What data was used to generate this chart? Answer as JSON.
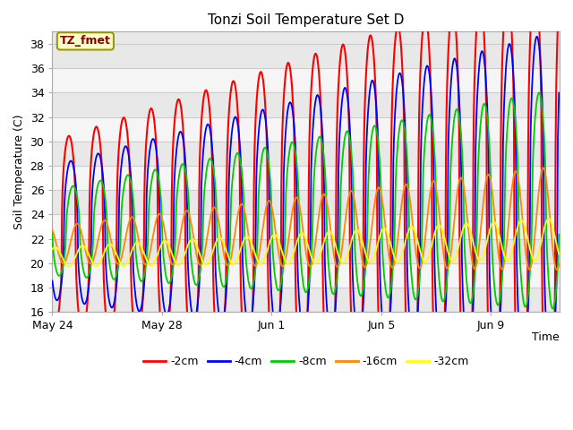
{
  "title": "Tonzi Soil Temperature Set D",
  "ylabel": "Soil Temperature (C)",
  "xlabel": "Time",
  "annotation": "TZ_fmet",
  "ylim": [
    16,
    39
  ],
  "yticks": [
    16,
    18,
    20,
    22,
    24,
    26,
    28,
    30,
    32,
    34,
    36,
    38
  ],
  "xtick_labels": [
    "May 24",
    "May 28",
    "Jun 1",
    "Jun 5",
    "Jun 9"
  ],
  "xtick_positions": [
    0,
    4,
    8,
    12,
    16
  ],
  "legend_labels": [
    "-2cm",
    "-4cm",
    "-8cm",
    "-16cm",
    "-32cm"
  ],
  "line_colors": [
    "#ff0000",
    "#0000ff",
    "#00cc00",
    "#ff8800",
    "#ffff00"
  ],
  "band_colors": [
    "#e8e8e8",
    "#f5f5f5"
  ],
  "grid_line_color": "#cccccc",
  "annotation_bg": "#ffffcc",
  "annotation_border": "#999900",
  "annotation_text_color": "#880000",
  "n_days": 18.5,
  "hours_per_day": 24
}
